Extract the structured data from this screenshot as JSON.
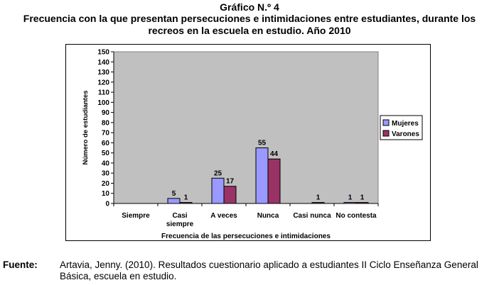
{
  "heading": {
    "line1": "Gráfico N.º 4",
    "line2": "Frecuencia con la que presentan persecuciones e intimidaciones entre estudiantes, durante los",
    "line3": "recreos en la escuela en estudio. Año 2010"
  },
  "chart_data": {
    "type": "bar",
    "categories": [
      "Siempre",
      "Casi siempre",
      "A veces",
      "Nunca",
      "Casi nunca",
      "No contesta"
    ],
    "series": [
      {
        "name": "Mujeres",
        "values": [
          0,
          5,
          25,
          55,
          0,
          1
        ],
        "labels": [
          "",
          "5",
          "25",
          "55",
          "",
          "1"
        ],
        "color": "#9999ff"
      },
      {
        "name": "Varones",
        "values": [
          0,
          1,
          17,
          44,
          1,
          1
        ],
        "labels": [
          "",
          "1",
          "17",
          "44",
          "1",
          "1"
        ],
        "color": "#993366"
      }
    ],
    "xlabel": "Frecuencia de las persecuciones e intimidaciones",
    "ylabel": "Número de estudiantes",
    "ylim": [
      0,
      150
    ],
    "yticks": [
      0,
      10,
      20,
      30,
      40,
      50,
      60,
      70,
      80,
      90,
      100,
      110,
      120,
      130,
      140,
      150
    ],
    "plot_background": "#c0c0c0",
    "grid": false,
    "legend_position": "right"
  },
  "source": {
    "label": "Fuente:",
    "text": "Artavia, Jenny. (2010). Resultados cuestionario aplicado a estudiantes II Ciclo Enseñanza General Básica, escuela en estudio."
  }
}
